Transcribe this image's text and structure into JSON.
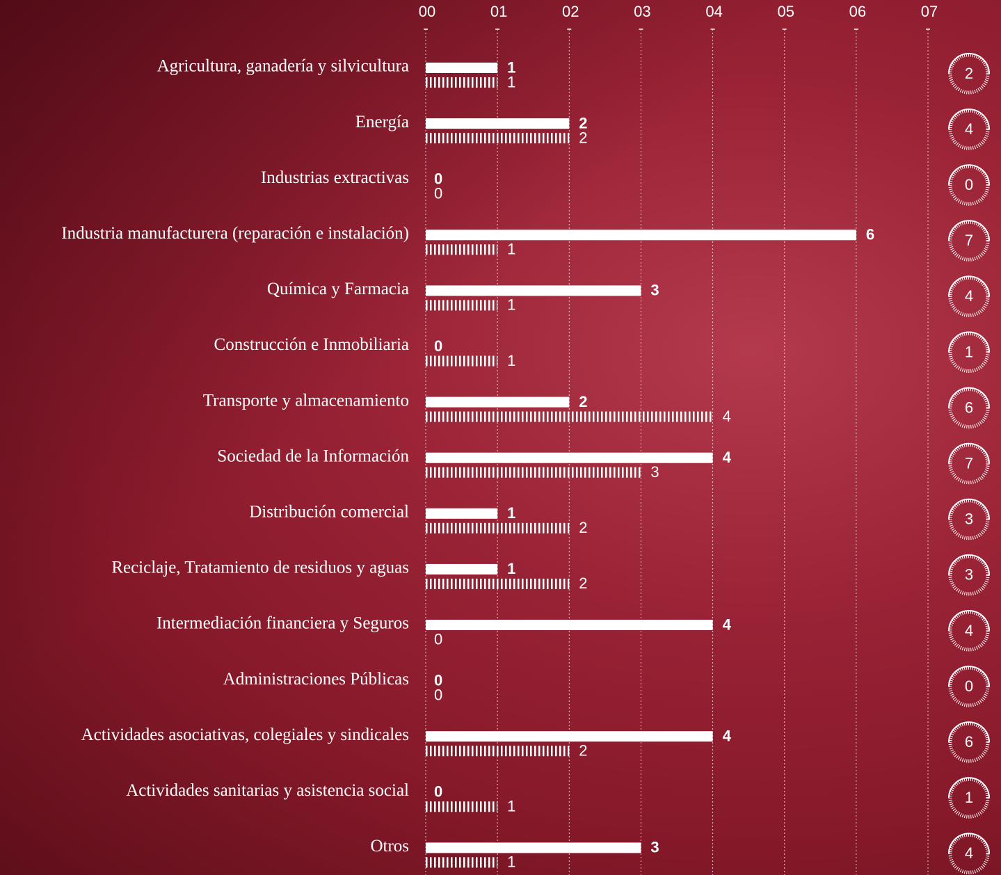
{
  "chart_data": {
    "type": "bar",
    "orientation": "horizontal",
    "categories": [
      "Agricultura, ganadería y silvicultura",
      "Energía",
      "Industrias extractivas",
      "Industria manufacturera (reparación e instalación)",
      "Química y Farmacia",
      "Construcción e Inmobiliaria",
      "Transporte y almacenamiento",
      "Sociedad de la Información",
      "Distribución comercial",
      "Reciclaje, Tratamiento de residuos y aguas",
      "Intermediación financiera y Seguros",
      "Administraciones Públicas",
      "Actividades asociativas, colegiales y sindicales",
      "Actividades sanitarias y asistencia social",
      "Otros"
    ],
    "series": [
      {
        "color": "#ffffff",
        "hatch": false,
        "values": [
          1,
          2,
          0,
          6,
          3,
          0,
          2,
          4,
          1,
          1,
          4,
          0,
          4,
          0,
          3
        ]
      },
      {
        "color": "#ffffff",
        "hatch": true,
        "values": [
          1,
          2,
          0,
          1,
          1,
          1,
          4,
          3,
          2,
          2,
          0,
          0,
          2,
          1,
          1
        ]
      }
    ],
    "totals": [
      2,
      4,
      0,
      7,
      4,
      1,
      6,
      7,
      3,
      3,
      4,
      0,
      6,
      1,
      4
    ],
    "xlim": [
      0,
      7
    ],
    "xticks": [
      {
        "value": 0,
        "label": "00"
      },
      {
        "value": 1,
        "label": "01"
      },
      {
        "value": 2,
        "label": "02"
      },
      {
        "value": 3,
        "label": "03"
      },
      {
        "value": 4,
        "label": "04"
      },
      {
        "value": 5,
        "label": "05"
      },
      {
        "value": 6,
        "label": "06"
      },
      {
        "value": 7,
        "label": "07"
      }
    ],
    "grid": true
  }
}
